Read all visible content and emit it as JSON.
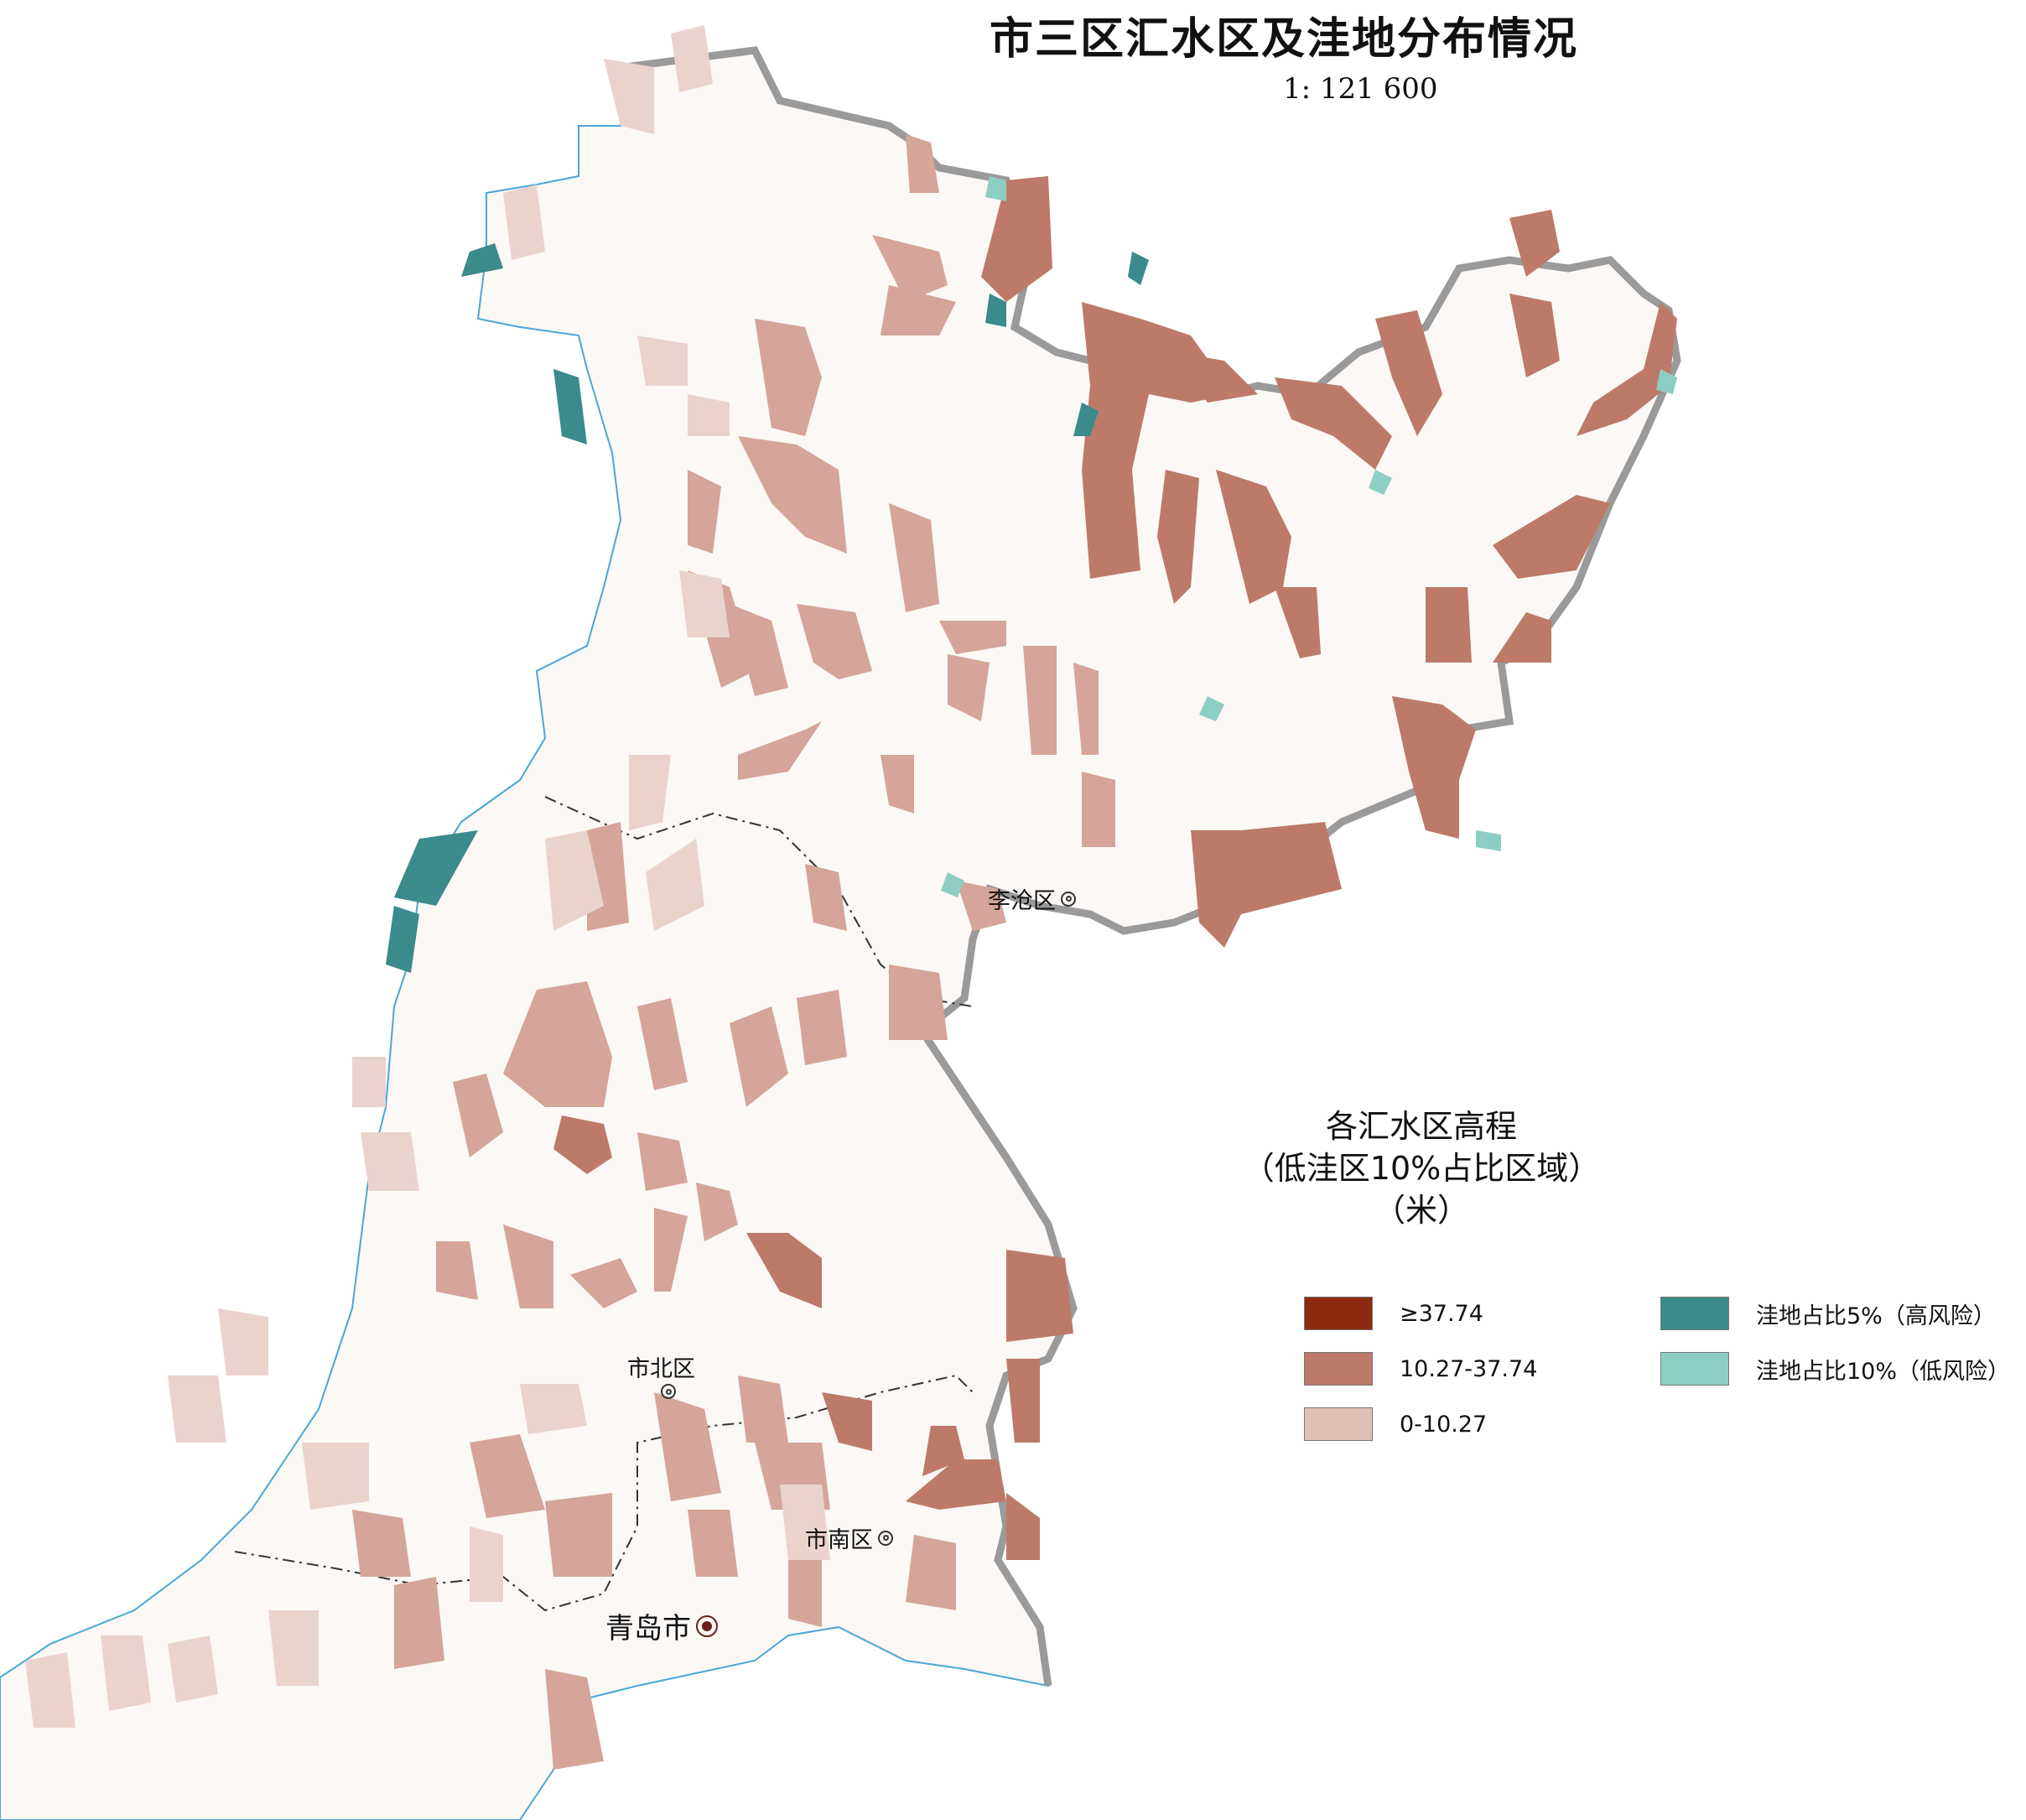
{
  "title": "市三区汇水区及洼地分布情况",
  "scale": "1: 121 600",
  "legend": {
    "title_lines": [
      "各汇水区高程",
      "（低洼区10%占比区域）",
      "（米）"
    ],
    "elevation_classes": [
      {
        "label": "≥37.74",
        "color": "#8e2a12"
      },
      {
        "label": "10.27-37.74",
        "color": "#bd7a68"
      },
      {
        "label": "0-10.27",
        "color": "#e0bfb6"
      }
    ],
    "depression_classes": [
      {
        "label": "洼地占比5%（高风险）",
        "color": "#3b8a8c"
      },
      {
        "label": "洼地占比10%（低风险）",
        "color": "#8ecdc3"
      }
    ]
  },
  "places": {
    "licang": "李沧区",
    "shibei": "市北区",
    "shinan": "市南区",
    "qingdao": "青岛市"
  },
  "colors": {
    "land": "#fbf8f6",
    "coast_line": "#4aa6d6",
    "district_boundary": "#9a9a9a"
  }
}
